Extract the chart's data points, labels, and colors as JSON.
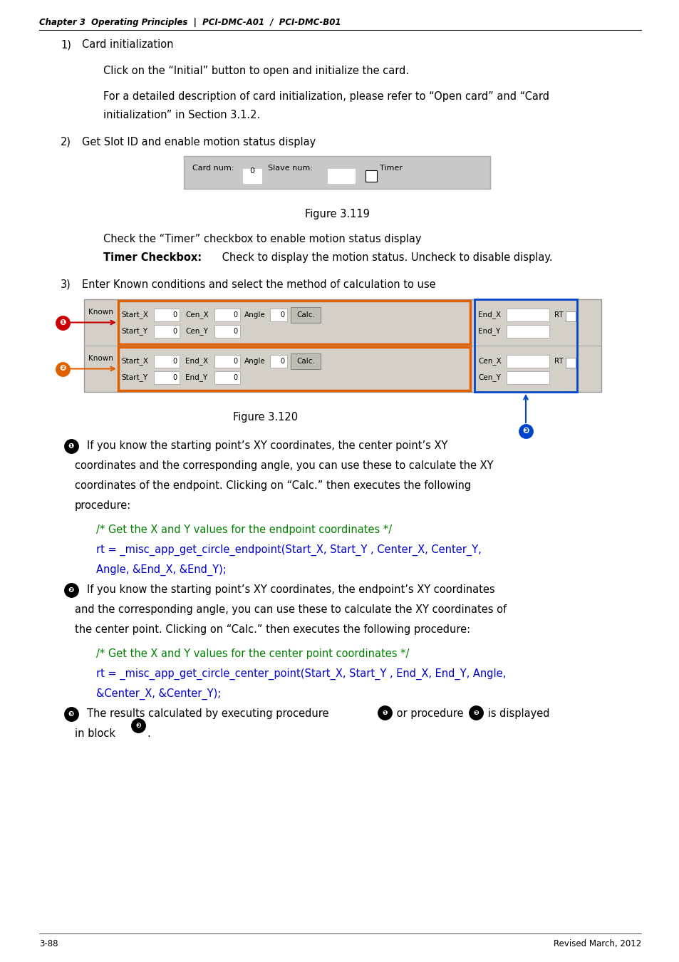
{
  "page_bg": "#ffffff",
  "header_text": "Chapter 3  Operating Principles  |  PCI-DMC-A01  /  PCI-DMC-B01",
  "footer_left": "3-88",
  "footer_right": "Revised March, 2012",
  "code_green": "#008000",
  "code_blue": "#0000cc",
  "fig_bg": "#d4d0c8",
  "fig_border": "#999999",
  "orange_color": "#e06000",
  "red_color": "#cc0000",
  "blue_color": "#0044cc"
}
